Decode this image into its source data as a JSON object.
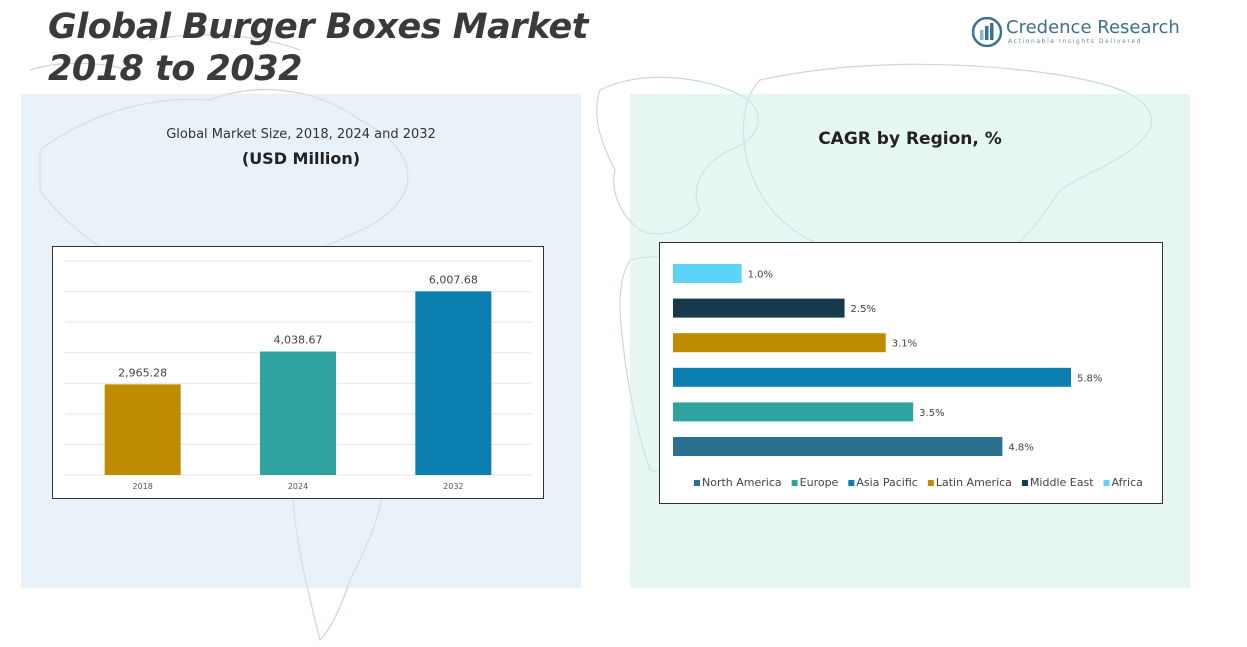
{
  "page": {
    "title": "Global Burger Boxes Market 2018 to 2032",
    "title_lines": [
      "Global Burger Boxes Market",
      "2018 to 2032"
    ]
  },
  "logo": {
    "name": "Credence Research",
    "tagline": "Actionable Insights Delivered",
    "colors": {
      "primary": "#3d6f8f",
      "secondary": "#7fb8d6"
    }
  },
  "left_panel": {
    "title": "Global Market Size, 2018, 2024 and 2032",
    "subtitle": "(USD Million)"
  },
  "right_panel": {
    "title": "CAGR by Region, %"
  },
  "chart_data": [
    {
      "type": "bar",
      "categories": [
        "2018",
        "2024",
        "2032"
      ],
      "values": [
        2965.28,
        4038.67,
        6007.68
      ],
      "value_labels": [
        "2,965.28",
        "4,038.67",
        "6,007.68"
      ],
      "colors": [
        "#bf8c00",
        "#2fa39f",
        "#0a7fb0"
      ],
      "ylim": [
        0,
        7000
      ],
      "grid": true,
      "legend": "none"
    },
    {
      "type": "bar",
      "orientation": "horizontal",
      "categories": [
        "Africa",
        "Middle East",
        "Latin America",
        "Asia Pacific",
        "Europe",
        "North America"
      ],
      "values": [
        1.0,
        2.5,
        3.1,
        5.8,
        3.5,
        4.8
      ],
      "value_labels": [
        "1.0%",
        "2.5%",
        "3.1%",
        "5.8%",
        "3.5%",
        "4.8%"
      ],
      "colors": [
        "#5dd3f7",
        "#163a4c",
        "#bf8c00",
        "#0a7fb0",
        "#2fa39f",
        "#2b7090"
      ],
      "xlim": [
        0,
        5.8
      ],
      "legend": "bottom",
      "legend_order": [
        "North America",
        "Europe",
        "Asia Pacific",
        "Latin America",
        "Middle East",
        "Africa"
      ]
    }
  ]
}
